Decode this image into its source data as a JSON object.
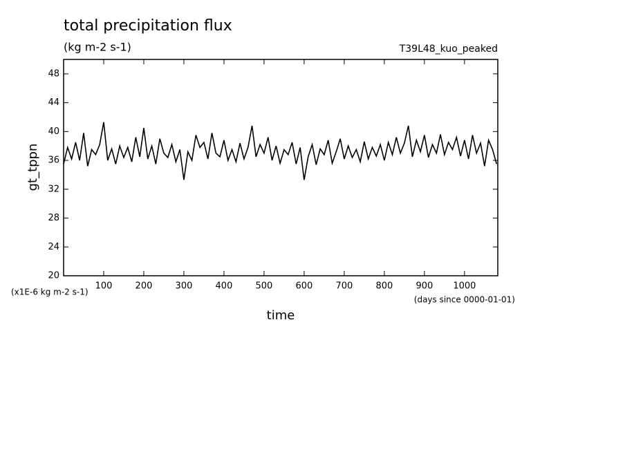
{
  "chart_data": {
    "type": "line",
    "title": "total precipitation flux",
    "subtitle": "(kg m-2 s-1)",
    "run_label": "T39L48_kuo_peaked",
    "y_label": "gt_tppn",
    "x_label": "time",
    "y_unit_note": "(x1E-6 kg m-2 s-1)",
    "x_unit_note": "(days since 0000-01-01)",
    "x": [
      0,
      10,
      20,
      30,
      40,
      50,
      60,
      70,
      80,
      90,
      100,
      110,
      120,
      130,
      140,
      150,
      160,
      170,
      180,
      190,
      200,
      210,
      220,
      230,
      240,
      250,
      260,
      270,
      280,
      290,
      300,
      310,
      320,
      330,
      340,
      350,
      360,
      370,
      380,
      390,
      400,
      410,
      420,
      430,
      440,
      450,
      460,
      470,
      480,
      490,
      500,
      510,
      520,
      530,
      540,
      550,
      560,
      570,
      580,
      590,
      600,
      610,
      620,
      630,
      640,
      650,
      660,
      670,
      680,
      690,
      700,
      710,
      720,
      730,
      740,
      750,
      760,
      770,
      780,
      790,
      800,
      810,
      820,
      830,
      840,
      850,
      860,
      870,
      880,
      890,
      900,
      910,
      920,
      930,
      940,
      950,
      960,
      970,
      980,
      990,
      1000,
      1010,
      1020,
      1030,
      1040,
      1050,
      1060,
      1070,
      1080
    ],
    "series": [
      {
        "name": "gt_tppn",
        "color": "#000000",
        "values": [
          35.5,
          37.8,
          36.2,
          38.5,
          36,
          39.8,
          35.2,
          37.5,
          36.8,
          38.2,
          41.3,
          36,
          37.6,
          35.5,
          38,
          36.4,
          37.8,
          35.8,
          39.2,
          36.5,
          40.5,
          36.2,
          38,
          35.5,
          39,
          37,
          36.4,
          38.2,
          35.8,
          37.5,
          33.3,
          37.2,
          36,
          39.5,
          37.8,
          38.5,
          36.2,
          39.8,
          37,
          36.5,
          38.8,
          36,
          37.5,
          35.8,
          38.4,
          36.2,
          37.8,
          40.8,
          36.5,
          38.2,
          37,
          39.2,
          36,
          38,
          35.6,
          37.5,
          36.8,
          38.5,
          35.5,
          37.8,
          33.3,
          36.5,
          38.2,
          35.4,
          37.6,
          36.8,
          38.8,
          35.6,
          37.2,
          39,
          36.2,
          38,
          36.4,
          37.5,
          35.8,
          38.6,
          36.2,
          37.8,
          36.6,
          38.2,
          36,
          38.5,
          36.8,
          39.2,
          37,
          38.4,
          40.8,
          36.5,
          38.8,
          37.2,
          39.5,
          36.4,
          38.2,
          37,
          39.6,
          36.8,
          38.5,
          37.5,
          39.2,
          36.6,
          38.8,
          36.2,
          39.5,
          37,
          38.4,
          35.2,
          38.8,
          37.5,
          35.5
        ]
      }
    ],
    "xlim": [
      0,
      1083
    ],
    "ylim": [
      20,
      50
    ],
    "xticks": [
      100,
      200,
      300,
      400,
      500,
      600,
      700,
      800,
      900,
      1000
    ],
    "yticks": [
      20,
      24,
      28,
      32,
      36,
      40,
      44,
      48
    ]
  }
}
